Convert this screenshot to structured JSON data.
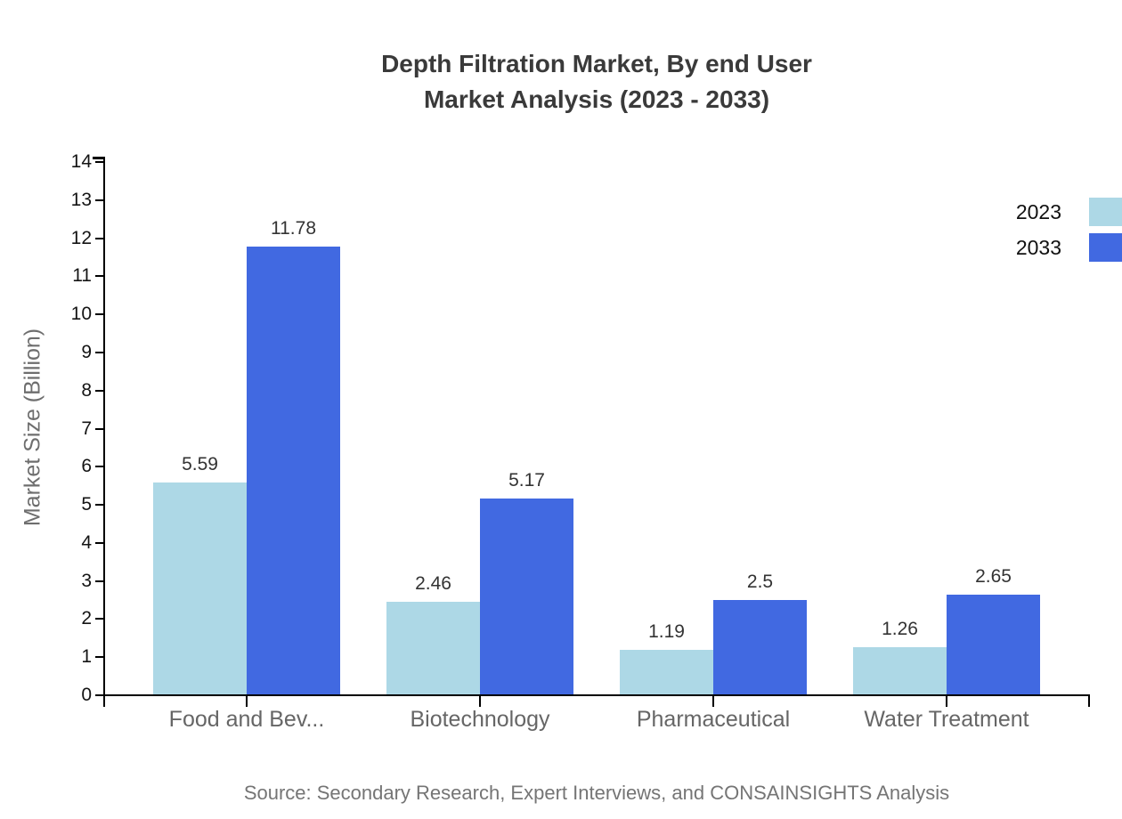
{
  "title_lines": [
    "Depth Filtration Market, By end User",
    "Market Analysis (2023 - 2033)"
  ],
  "source": "Source: Secondary Research, Expert Interviews, and CONSAINSIGHTS Analysis",
  "chart_data": {
    "type": "bar",
    "title": "Depth Filtration Market, By end User Market Analysis (2023 - 2033)",
    "categories": [
      "Food and Bev...",
      "Biotechnology",
      "Pharmaceutical",
      "Water Treatment"
    ],
    "series": [
      {
        "name": "2023",
        "color": "#ADD8E6",
        "values": [
          5.59,
          2.46,
          1.19,
          1.26
        ]
      },
      {
        "name": "2033",
        "color": "#4169E1",
        "values": [
          11.78,
          5.17,
          2.5,
          2.65
        ]
      }
    ],
    "xlabel": "",
    "ylabel": "Market Size (Billion)",
    "ylim": [
      0,
      14
    ],
    "ytick_step": 1,
    "grid": false,
    "legend_position": "top-right",
    "value_labels": true,
    "axis_color": "#000000"
  }
}
